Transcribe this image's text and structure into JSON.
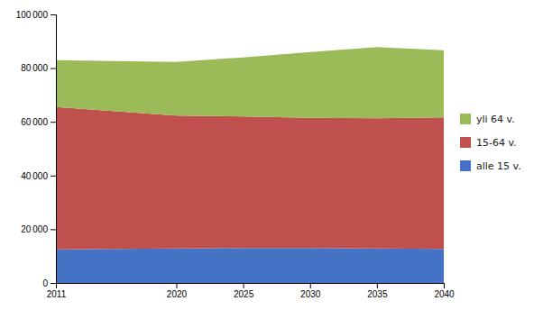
{
  "chart_data": {
    "type": "area",
    "stacked": true,
    "x": [
      2011,
      2020,
      2025,
      2030,
      2035,
      2040
    ],
    "series": [
      {
        "name": "alle 15 v.",
        "color": "#4472C4",
        "values": [
          12500,
          12800,
          13000,
          13000,
          12800,
          12700
        ]
      },
      {
        "name": "15-64 v.",
        "color": "#C0504D",
        "values": [
          53000,
          49500,
          49000,
          48500,
          48500,
          49000
        ]
      },
      {
        "name": "yli 64 v.",
        "color": "#9BBB59",
        "values": [
          17500,
          20000,
          22000,
          24500,
          26500,
          25000
        ]
      }
    ],
    "xlim": [
      2011,
      2040
    ],
    "xticks": [
      2011,
      2020,
      2025,
      2030,
      2035,
      2040
    ],
    "ylim": [
      0,
      100000
    ],
    "yticks": [
      0,
      {
        "value": 20000,
        "label": "20 000"
      },
      {
        "value": 40000,
        "label": "40 000"
      },
      {
        "value": 60000,
        "label": "60 000"
      },
      {
        "value": 80000,
        "label": "80 000"
      },
      {
        "value": 100000,
        "label": "100 000"
      }
    ],
    "grid": false,
    "legend": "right"
  }
}
